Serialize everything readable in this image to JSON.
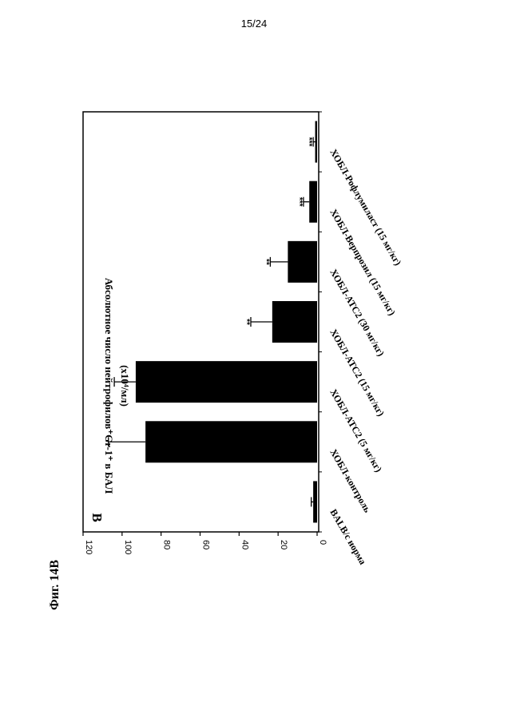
{
  "page_number": "15/24",
  "figure_label": "Фиг. 14В",
  "chart_data": {
    "type": "bar",
    "orientation": "rotated 90° clockwise on the page",
    "panel_label": "В",
    "ylabel_line1": "Абсолютное число нейтрофилов⁺Gr-1⁺ в БАЛ",
    "ylabel_line2": "(x10⁴/мл)",
    "ylim": [
      0,
      120
    ],
    "yticks": [
      "0",
      "20",
      "40",
      "60",
      "80",
      "100",
      "120"
    ],
    "grid": false,
    "categories": [
      "BALB/c норма",
      "ХОБЛ-контроль",
      "ХОБЛ-АТС2 (5 мг/кг)",
      "ХОБЛ-АТС2 (15 мг/кг)",
      "ХОБЛ-АТС2 (30 мг/кг)",
      "ХОБЛ-Верпрозил (15 мг/кг)",
      "ХОБЛ-Рофлумиласт (15 мг/кг)"
    ],
    "values": [
      2,
      88,
      93,
      23,
      15,
      4,
      1
    ],
    "errors": [
      1,
      19,
      11,
      11,
      9,
      3,
      1
    ],
    "significance": [
      "",
      "",
      "",
      "**",
      "**",
      "***",
      "***"
    ],
    "bar_color": "#000000"
  }
}
